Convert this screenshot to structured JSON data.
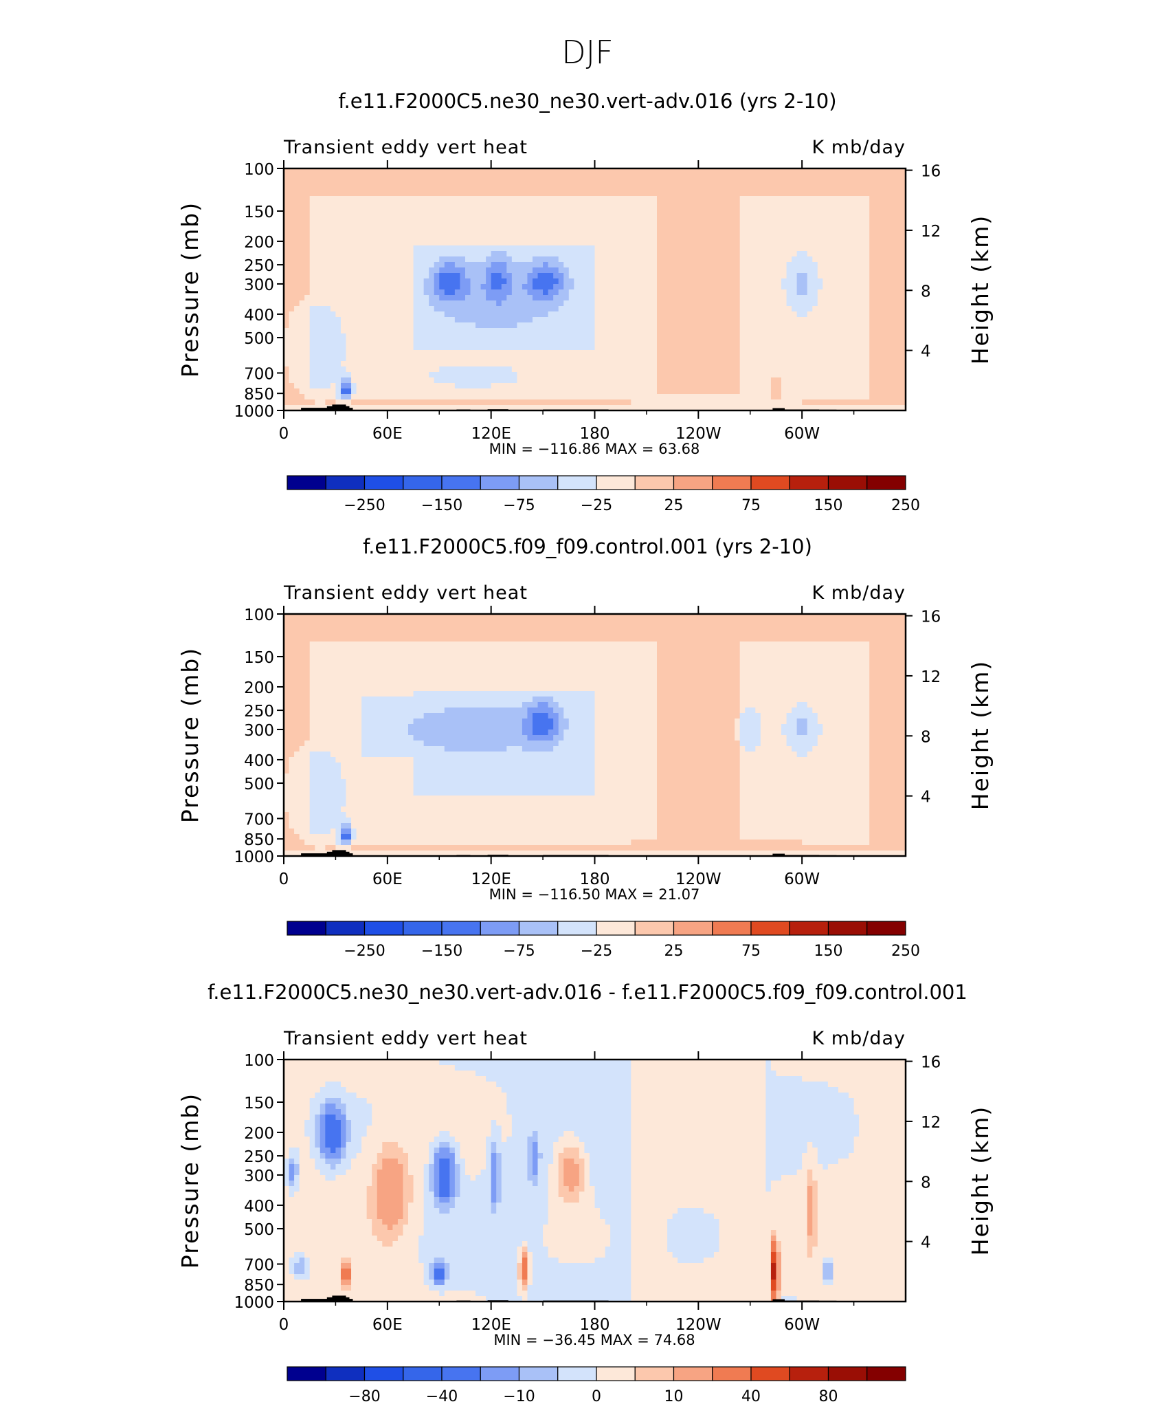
{
  "page_title": "DJF",
  "chart_data": [
    {
      "type": "heatmap",
      "title": "f.e11.F2000C5.ne30_ne30.vert-adv.016 (yrs 2-10)",
      "left_string": "Transient eddy vert heat",
      "right_string": "K mb/day",
      "ylabel": "Pressure (mb)",
      "ylabel_right": "Height (km)",
      "y_ticks": [
        "100",
        "150",
        "200",
        "250",
        "300",
        "400",
        "500",
        "700",
        "850",
        "1000"
      ],
      "y_right_ticks": [
        "16",
        "12",
        "8",
        "4"
      ],
      "x_ticks": [
        "0",
        "60E",
        "120E",
        "180",
        "120W",
        "60W"
      ],
      "stats": "MIN = −116.86   MAX =   63.68",
      "colorbar_labels": [
        "−250",
        "−150",
        "−75",
        "−25",
        "25",
        "75",
        "150",
        "250"
      ],
      "anomalies": [
        {
          "lon": 96,
          "p": 290,
          "amp": -75,
          "rlon": 10,
          "rlogp": 0.18
        },
        {
          "lon": 152,
          "p": 290,
          "amp": -78,
          "rlon": 11,
          "rlogp": 0.18
        },
        {
          "lon": 124,
          "p": 280,
          "amp": -55,
          "rlon": 8,
          "rlogp": 0.2
        },
        {
          "lon": 122,
          "p": 350,
          "amp": -35,
          "rlon": 40,
          "rlogp": 0.35
        },
        {
          "lon": 300,
          "p": 300,
          "amp": -40,
          "rlon": 9,
          "rlogp": 0.25
        },
        {
          "lon": 36,
          "p": 820,
          "amp": -110,
          "rlon": 3,
          "rlogp": 0.1
        },
        {
          "lon": 285,
          "p": 800,
          "amp": 60,
          "rlon": 2,
          "rlogp": 0.12
        },
        {
          "lon": 110,
          "p": 720,
          "amp": -28,
          "rlon": 25,
          "rlogp": 0.1
        },
        {
          "lon": 20,
          "p": 550,
          "amp": -28,
          "rlon": 15,
          "rlogp": 0.4
        }
      ]
    },
    {
      "type": "heatmap",
      "title": "f.e11.F2000C5.f09_f09.control.001 (yrs 2-10)",
      "left_string": "Transient eddy vert heat",
      "right_string": "K mb/day",
      "ylabel": "Pressure (mb)",
      "ylabel_right": "Height (km)",
      "y_ticks": [
        "100",
        "150",
        "200",
        "250",
        "300",
        "400",
        "500",
        "700",
        "850",
        "1000"
      ],
      "y_right_ticks": [
        "16",
        "12",
        "8",
        "4"
      ],
      "x_ticks": [
        "0",
        "60E",
        "120E",
        "180",
        "120W",
        "60W"
      ],
      "stats": "MIN = −116.50   MAX =   21.07",
      "colorbar_labels": [
        "−250",
        "−150",
        "−75",
        "−25",
        "25",
        "75",
        "150",
        "250"
      ],
      "anomalies": [
        {
          "lon": 150,
          "p": 280,
          "amp": -78,
          "rlon": 10,
          "rlogp": 0.2
        },
        {
          "lon": 110,
          "p": 300,
          "amp": -40,
          "rlon": 45,
          "rlogp": 0.25
        },
        {
          "lon": 300,
          "p": 300,
          "amp": -42,
          "rlon": 9,
          "rlogp": 0.2
        },
        {
          "lon": 270,
          "p": 300,
          "amp": -32,
          "rlon": 6,
          "rlogp": 0.2
        },
        {
          "lon": 36,
          "p": 820,
          "amp": -110,
          "rlon": 3,
          "rlogp": 0.1
        },
        {
          "lon": 20,
          "p": 550,
          "amp": -28,
          "rlon": 15,
          "rlogp": 0.4
        }
      ]
    },
    {
      "type": "heatmap",
      "title": "f.e11.F2000C5.ne30_ne30.vert-adv.016 - f.e11.F2000C5.f09_f09.control.001",
      "left_string": "Transient eddy vert heat",
      "right_string": "K mb/day",
      "ylabel": "Pressure (mb)",
      "ylabel_right": "Height (km)",
      "y_ticks": [
        "100",
        "150",
        "200",
        "250",
        "300",
        "400",
        "500",
        "700",
        "850",
        "1000"
      ],
      "y_right_ticks": [
        "16",
        "12",
        "8",
        "4"
      ],
      "x_ticks": [
        "0",
        "60E",
        "120E",
        "180",
        "120W",
        "60W"
      ],
      "stats": "MIN = −36.45   MAX =   74.68",
      "colorbar_labels": [
        "−80",
        "−40",
        "−10",
        "0",
        "10",
        "40",
        "80"
      ],
      "anomalies": [
        {
          "lon": 28,
          "p": 200,
          "amp": -32,
          "rlon": 7,
          "rlogp": 0.25
        },
        {
          "lon": 62,
          "p": 350,
          "amp": 18,
          "rlon": 10,
          "rlogp": 0.4
        },
        {
          "lon": 93,
          "p": 300,
          "amp": -36,
          "rlon": 6,
          "rlogp": 0.25
        },
        {
          "lon": 122,
          "p": 300,
          "amp": -18,
          "rlon": 3,
          "rlogp": 0.3
        },
        {
          "lon": 145,
          "p": 260,
          "amp": -14,
          "rlon": 3,
          "rlogp": 0.25
        },
        {
          "lon": 166,
          "p": 290,
          "amp": 16,
          "rlon": 8,
          "rlogp": 0.3
        },
        {
          "lon": 90,
          "p": 760,
          "amp": -28,
          "rlon": 4,
          "rlogp": 0.1
        },
        {
          "lon": 36,
          "p": 780,
          "amp": 40,
          "rlon": 2,
          "rlogp": 0.1
        },
        {
          "lon": 139,
          "p": 740,
          "amp": 35,
          "rlon": 2,
          "rlogp": 0.15
        },
        {
          "lon": 284,
          "p": 760,
          "amp": 70,
          "rlon": 2,
          "rlogp": 0.25
        },
        {
          "lon": 315,
          "p": 730,
          "amp": -16,
          "rlon": 3,
          "rlogp": 0.1
        },
        {
          "lon": 10,
          "p": 720,
          "amp": -12,
          "rlon": 5,
          "rlogp": 0.1
        },
        {
          "lon": 5,
          "p": 290,
          "amp": -14,
          "rlon": 3,
          "rlogp": 0.15
        },
        {
          "lon": 305,
          "p": 400,
          "amp": 12,
          "rlon": 3,
          "rlogp": 0.4
        }
      ]
    }
  ],
  "colors": {
    "palette": [
      "#00008f",
      "#0f2fbf",
      "#1f4fe6",
      "#4774f0",
      "#7d9cf5",
      "#a9c1f7",
      "#d3e3fb",
      "#fde8d9",
      "#fcc8ad",
      "#f7a483",
      "#f07b52",
      "#e04a21",
      "#b7200d",
      "#840000"
    ],
    "terrain": "#000000",
    "axis": "#000000"
  }
}
